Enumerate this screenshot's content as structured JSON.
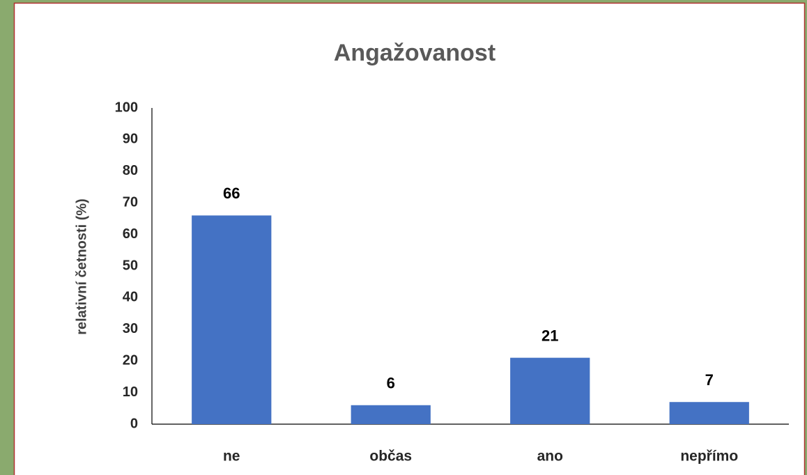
{
  "chart_data": {
    "type": "bar",
    "title": "Angažovanost",
    "y_label": "relativní četnosti (%)",
    "categories": [
      "ne",
      "občas",
      "ano",
      "nepřímo"
    ],
    "values": [
      66,
      6,
      21,
      7
    ],
    "color": "#4472c4",
    "ylim": [
      0,
      100
    ],
    "yticks": [
      0,
      10,
      20,
      30,
      40,
      50,
      60,
      70,
      80,
      90,
      100
    ],
    "grid": false
  }
}
